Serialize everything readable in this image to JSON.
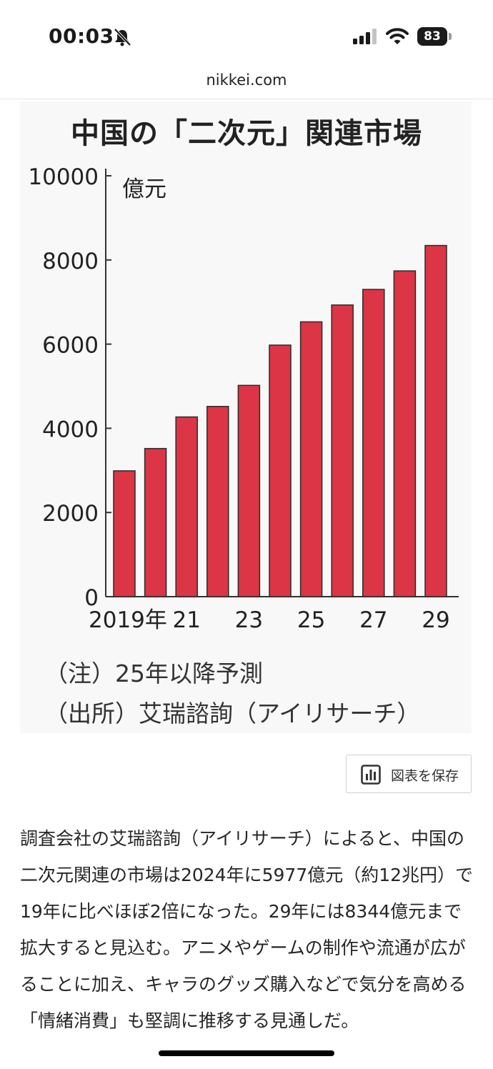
{
  "status_bar": {
    "time": "00:03",
    "battery": "83",
    "icons": [
      "bell-slash-icon",
      "cellular-signal-icon",
      "wifi-icon",
      "battery-icon"
    ]
  },
  "browser": {
    "url": "nikkei.com"
  },
  "figure": {
    "title": "中国の「二次元」関連市場",
    "note": "（注）25年以降予測",
    "source": "（出所）艾瑞諮詢（アイリサーチ）"
  },
  "chart_data": {
    "type": "bar",
    "title": "中国の「二次元」関連市場",
    "ylabel": "億元",
    "xlabel": "",
    "categories": [
      "2019",
      "2020",
      "2021",
      "2022",
      "2023",
      "2024",
      "2025",
      "2026",
      "2027",
      "2028",
      "2029"
    ],
    "x_tick_labels": [
      "2019年",
      "",
      "21",
      "",
      "23",
      "",
      "25",
      "",
      "27",
      "",
      "29"
    ],
    "values": [
      2990,
      3520,
      4270,
      4520,
      5020,
      5977,
      6530,
      6930,
      7300,
      7740,
      8344
    ],
    "ylim": [
      0,
      10000
    ],
    "y_ticks": [
      0,
      2000,
      4000,
      6000,
      8000,
      10000
    ],
    "y_tick_labels": [
      "0",
      "2000",
      "4000",
      "6000",
      "8000",
      "10000"
    ],
    "grid": false,
    "bar_color": "#dc3545"
  },
  "save_button": {
    "label": "図表を保存",
    "icon": "bar-chart-icon"
  },
  "article": {
    "text": "調査会社の艾瑞諮詢（アイリサーチ）によると、中国の二次元関連の市場は2024年に5977億元（約12兆円）で19年に比べほぼ2倍になった。29年には8344億元まで拡大すると見込む。アニメやゲームの制作や流通が広がることに加え、キャラのグッズ購入などで気分を高める「情緒消費」も堅調に推移する見通しだ。"
  }
}
